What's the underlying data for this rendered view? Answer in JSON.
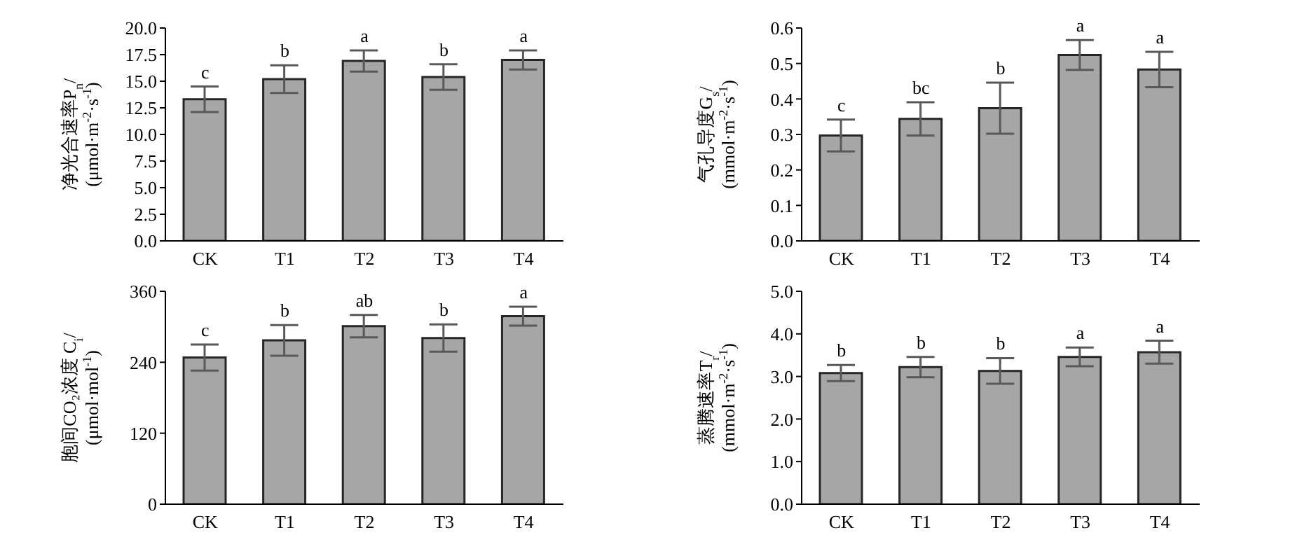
{
  "chart_data": [
    {
      "type": "bar",
      "categories": [
        "CK",
        "T1",
        "T2",
        "T3",
        "T4"
      ],
      "ylabel": "净光合速率P$_{n}$/\n(μmol·m$^{-2}$·s$^{-1}$)",
      "values": [
        13.3,
        15.2,
        16.9,
        15.4,
        17.0
      ],
      "errors": [
        1.2,
        1.3,
        1.0,
        1.2,
        0.9
      ],
      "color": "#a6a6a6",
      "ylim": [
        0,
        20
      ],
      "yticks": [
        {
          "value": 0,
          "label": "0.0"
        },
        2.5,
        {
          "value": 5,
          "label": "5.0"
        },
        7.5,
        {
          "value": 10,
          "label": "10.0"
        },
        12.5,
        {
          "value": 15,
          "label": "15.0"
        },
        17.5,
        {
          "value": 20,
          "label": "20.0"
        }
      ],
      "grid": false,
      "legend": false,
      "annotations": [
        {
          "text": "c",
          "x": "CK",
          "y": 14.5
        },
        {
          "text": "b",
          "x": "T1",
          "y": 16.5
        },
        {
          "text": "a",
          "x": "T2",
          "y": 17.9
        },
        {
          "text": "b",
          "x": "T3",
          "y": 16.6
        },
        {
          "text": "a",
          "x": "T4",
          "y": 17.9
        }
      ]
    },
    {
      "type": "bar",
      "categories": [
        "CK",
        "T1",
        "T2",
        "T3",
        "T4"
      ],
      "ylabel": "气孔导度G$_{s}$/\n(mmol·m$^{-2}$·s$^{-1}$)",
      "values": [
        0.297,
        0.344,
        0.374,
        0.524,
        0.483
      ],
      "errors": [
        0.045,
        0.047,
        0.072,
        0.042,
        0.05
      ],
      "color": "#a6a6a6",
      "ylim": [
        0,
        0.6
      ],
      "yticks": [
        {
          "value": 0,
          "label": "0.0"
        },
        0.1,
        0.2,
        0.3,
        0.4,
        0.5,
        0.6
      ],
      "grid": false,
      "legend": false,
      "annotations": [
        {
          "text": "c",
          "x": "CK",
          "y": 0.342
        },
        {
          "text": "bc",
          "x": "T1",
          "y": 0.391
        },
        {
          "text": "b",
          "x": "T2",
          "y": 0.446
        },
        {
          "text": "a",
          "x": "T3",
          "y": 0.566
        },
        {
          "text": "a",
          "x": "T4",
          "y": 0.533
        }
      ]
    },
    {
      "type": "bar",
      "categories": [
        "CK",
        "T1",
        "T2",
        "T3",
        "T4"
      ],
      "ylabel": "胞间CO₂浓度 C$_{i}$/\n(μmol·mol$^{-1}$)",
      "values": [
        248,
        277,
        301,
        281,
        318
      ],
      "errors": [
        22,
        26,
        19,
        23,
        16
      ],
      "color": "#a6a6a6",
      "ylim": [
        0,
        360
      ],
      "yticks": [
        0,
        120,
        240,
        360
      ],
      "grid": false,
      "legend": false,
      "annotations": [
        {
          "text": "c",
          "x": "CK",
          "y": 270
        },
        {
          "text": "b",
          "x": "T1",
          "y": 303
        },
        {
          "text": "ab",
          "x": "T2",
          "y": 320
        },
        {
          "text": "b",
          "x": "T3",
          "y": 304
        },
        {
          "text": "a",
          "x": "T4",
          "y": 334
        }
      ]
    },
    {
      "type": "bar",
      "categories": [
        "CK",
        "T1",
        "T2",
        "T3",
        "T4"
      ],
      "ylabel": "蒸腾速率T$_{r}$/\n(mmol·m$^{-2}$·s$^{-1}$)",
      "values": [
        3.08,
        3.22,
        3.13,
        3.46,
        3.57
      ],
      "errors": [
        0.19,
        0.24,
        0.3,
        0.22,
        0.27
      ],
      "color": "#a6a6a6",
      "ylim": [
        0,
        5
      ],
      "yticks": [
        {
          "value": 0,
          "label": "0.0"
        },
        {
          "value": 1,
          "label": "1.0"
        },
        {
          "value": 2,
          "label": "2.0"
        },
        {
          "value": 3,
          "label": "3.0"
        },
        {
          "value": 4,
          "label": "4.0"
        },
        {
          "value": 5,
          "label": "5.0"
        }
      ],
      "grid": false,
      "legend": false,
      "annotations": [
        {
          "text": "b",
          "x": "CK",
          "y": 3.27
        },
        {
          "text": "b",
          "x": "T1",
          "y": 3.46
        },
        {
          "text": "b",
          "x": "T2",
          "y": 3.43
        },
        {
          "text": "a",
          "x": "T3",
          "y": 3.68
        },
        {
          "text": "a",
          "x": "T4",
          "y": 3.84
        }
      ]
    }
  ]
}
